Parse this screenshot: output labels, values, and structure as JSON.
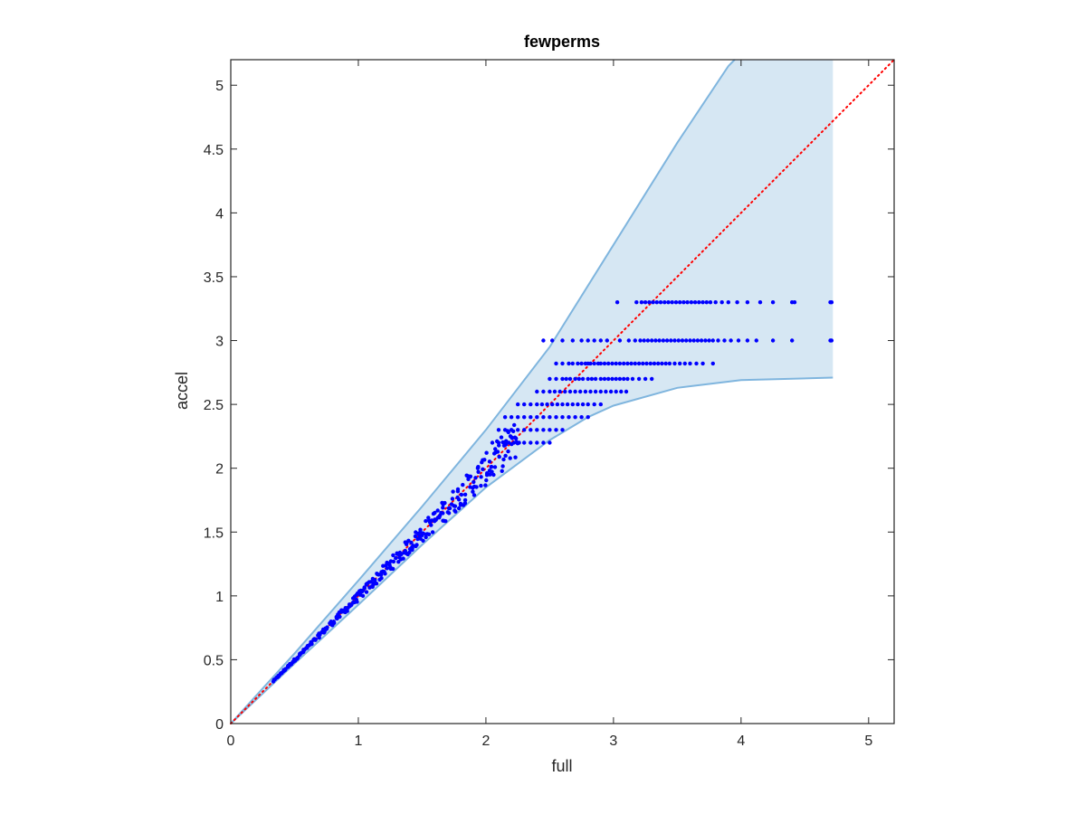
{
  "chart_data": {
    "type": "scatter",
    "title": "fewperms",
    "xlabel": "full",
    "ylabel": "accel",
    "xlim": [
      0,
      5.2
    ],
    "ylim": [
      0,
      5.2
    ],
    "xticks": [
      0,
      1,
      2,
      3,
      4,
      5
    ],
    "yticks": [
      0,
      0.5,
      1,
      1.5,
      2,
      2.5,
      3,
      3.5,
      4,
      4.5,
      5
    ],
    "xtick_labels": [
      "0",
      "1",
      "2",
      "3",
      "4",
      "5"
    ],
    "ytick_labels": [
      "0",
      "0.5",
      "1",
      "1.5",
      "2",
      "2.5",
      "3",
      "3.5",
      "4",
      "4.5",
      "5"
    ],
    "grid": false,
    "reference_line": {
      "x": [
        0,
        5.2
      ],
      "y": [
        0,
        5.2
      ],
      "color": "#ff0000",
      "style": "dotted"
    },
    "band": {
      "color_fill": "#d6e7f3",
      "color_edge": "#7fb5de",
      "upper": {
        "x": [
          0,
          0.5,
          1.0,
          1.5,
          2.0,
          2.5,
          3.0,
          3.5,
          3.9,
          3.95
        ],
        "y": [
          0,
          0.55,
          1.12,
          1.7,
          2.3,
          2.95,
          3.75,
          4.55,
          5.15,
          5.2
        ]
      },
      "upper_edge_end": {
        "x": 4.72,
        "y": 5.2
      },
      "lower": {
        "x": [
          0,
          0.5,
          1.0,
          1.5,
          2.0,
          2.5,
          2.8,
          3.0,
          3.5,
          4.0,
          4.72
        ],
        "y": [
          0,
          0.47,
          0.93,
          1.4,
          1.85,
          2.22,
          2.4,
          2.49,
          2.63,
          2.69,
          2.71
        ]
      }
    },
    "series": [
      {
        "color": "#0000ff",
        "diagonal_cloud": {
          "x_range": [
            0.33,
            2.25
          ],
          "count": 320,
          "slope_center": 0.995,
          "spread_low": 0.015,
          "spread_high": 0.07
        },
        "levels": [
          {
            "y": 3.3,
            "x": [
              3.03,
              3.18,
              3.22,
              3.25,
              3.28,
              3.31,
              3.34,
              3.37,
              3.4,
              3.43,
              3.46,
              3.49,
              3.52,
              3.55,
              3.58,
              3.61,
              3.64,
              3.67,
              3.7,
              3.73,
              3.76,
              3.8,
              3.85,
              3.9,
              3.97,
              4.05,
              4.15,
              4.25,
              4.4,
              4.42,
              4.7,
              4.71
            ]
          },
          {
            "y": 3.0,
            "x": [
              2.45,
              2.52,
              2.6,
              2.68,
              2.75,
              2.8,
              2.85,
              2.9,
              2.95,
              3.05,
              3.12,
              3.17,
              3.21,
              3.24,
              3.27,
              3.3,
              3.33,
              3.36,
              3.39,
              3.42,
              3.45,
              3.48,
              3.51,
              3.54,
              3.57,
              3.6,
              3.63,
              3.66,
              3.69,
              3.72,
              3.75,
              3.78,
              3.82,
              3.87,
              3.92,
              3.98,
              4.05,
              4.12,
              4.25,
              4.4,
              4.7,
              4.71
            ]
          },
          {
            "y": 2.82,
            "x": [
              2.55,
              2.6,
              2.65,
              2.68,
              2.72,
              2.75,
              2.78,
              2.8,
              2.82,
              2.85,
              2.88,
              2.9,
              2.93,
              2.96,
              2.99,
              3.02,
              3.05,
              3.08,
              3.11,
              3.14,
              3.17,
              3.2,
              3.23,
              3.26,
              3.29,
              3.32,
              3.35,
              3.38,
              3.41,
              3.44,
              3.48,
              3.52,
              3.56,
              3.6,
              3.65,
              3.7,
              3.78
            ]
          },
          {
            "y": 2.7,
            "x": [
              2.5,
              2.55,
              2.6,
              2.63,
              2.66,
              2.7,
              2.73,
              2.76,
              2.8,
              2.83,
              2.86,
              2.9,
              2.93,
              2.96,
              2.99,
              3.02,
              3.05,
              3.08,
              3.11,
              3.15,
              3.2,
              3.25,
              3.3
            ]
          },
          {
            "y": 2.6,
            "x": [
              2.4,
              2.45,
              2.5,
              2.54,
              2.58,
              2.62,
              2.66,
              2.7,
              2.74,
              2.78,
              2.82,
              2.86,
              2.9,
              2.94,
              2.98,
              3.02,
              3.06,
              3.1
            ]
          },
          {
            "y": 2.5,
            "x": [
              2.25,
              2.3,
              2.35,
              2.4,
              2.44,
              2.48,
              2.52,
              2.56,
              2.6,
              2.64,
              2.68,
              2.72,
              2.76,
              2.8,
              2.85,
              2.9
            ]
          },
          {
            "y": 2.4,
            "x": [
              2.15,
              2.2,
              2.25,
              2.3,
              2.35,
              2.4,
              2.45,
              2.5,
              2.55,
              2.6,
              2.65,
              2.7,
              2.75,
              2.8
            ]
          },
          {
            "y": 2.3,
            "x": [
              2.1,
              2.15,
              2.2,
              2.25,
              2.3,
              2.35,
              2.4,
              2.45,
              2.5,
              2.55,
              2.6
            ]
          },
          {
            "y": 2.2,
            "x": [
              2.05,
              2.1,
              2.14,
              2.18,
              2.22,
              2.26,
              2.3,
              2.35,
              2.4,
              2.45,
              2.5
            ]
          }
        ]
      }
    ]
  }
}
